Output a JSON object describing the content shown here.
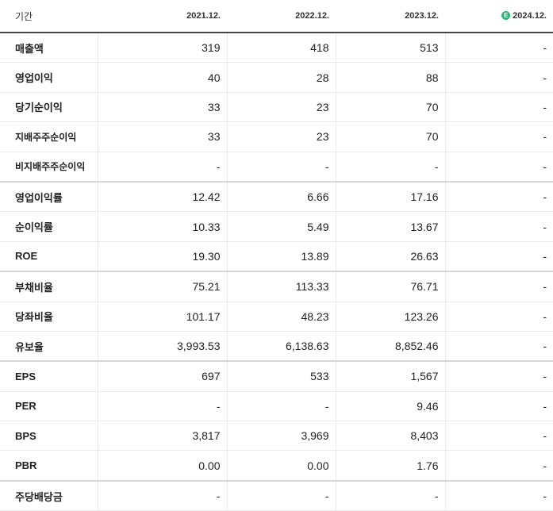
{
  "header": {
    "label": "기간",
    "periods": [
      "2021.12.",
      "2022.12.",
      "2023.12.",
      "2024.12."
    ],
    "estimate_badge": "E"
  },
  "rows": [
    {
      "label": "매출액",
      "values": [
        "319",
        "418",
        "513",
        "-"
      ]
    },
    {
      "label": "영업이익",
      "values": [
        "40",
        "28",
        "88",
        "-"
      ]
    },
    {
      "label": "당기순이익",
      "values": [
        "33",
        "23",
        "70",
        "-"
      ]
    },
    {
      "label": "지배주주순이익",
      "values": [
        "33",
        "23",
        "70",
        "-"
      ]
    },
    {
      "label": "비지배주주순이익",
      "values": [
        "-",
        "-",
        "-",
        "-"
      ]
    },
    {
      "label": "영업이익률",
      "values": [
        "12.42",
        "6.66",
        "17.16",
        "-"
      ]
    },
    {
      "label": "순이익률",
      "values": [
        "10.33",
        "5.49",
        "13.67",
        "-"
      ]
    },
    {
      "label": "ROE",
      "values": [
        "19.30",
        "13.89",
        "26.63",
        "-"
      ]
    },
    {
      "label": "부채비율",
      "values": [
        "75.21",
        "113.33",
        "76.71",
        "-"
      ]
    },
    {
      "label": "당좌비율",
      "values": [
        "101.17",
        "48.23",
        "123.26",
        "-"
      ]
    },
    {
      "label": "유보율",
      "values": [
        "3,993.53",
        "6,138.63",
        "8,852.46",
        "-"
      ]
    },
    {
      "label": "EPS",
      "values": [
        "697",
        "533",
        "1,567",
        "-"
      ]
    },
    {
      "label": "PER",
      "values": [
        "-",
        "-",
        "9.46",
        "-"
      ]
    },
    {
      "label": "BPS",
      "values": [
        "3,817",
        "3,969",
        "8,403",
        "-"
      ]
    },
    {
      "label": "PBR",
      "values": [
        "0.00",
        "0.00",
        "1.76",
        "-"
      ]
    },
    {
      "label": "주당배당금",
      "values": [
        "-",
        "-",
        "-",
        "-"
      ]
    }
  ],
  "colors": {
    "estimate_badge": "#2bb673",
    "header_rule": "#444444",
    "group_rule": "#d6d6d6"
  }
}
